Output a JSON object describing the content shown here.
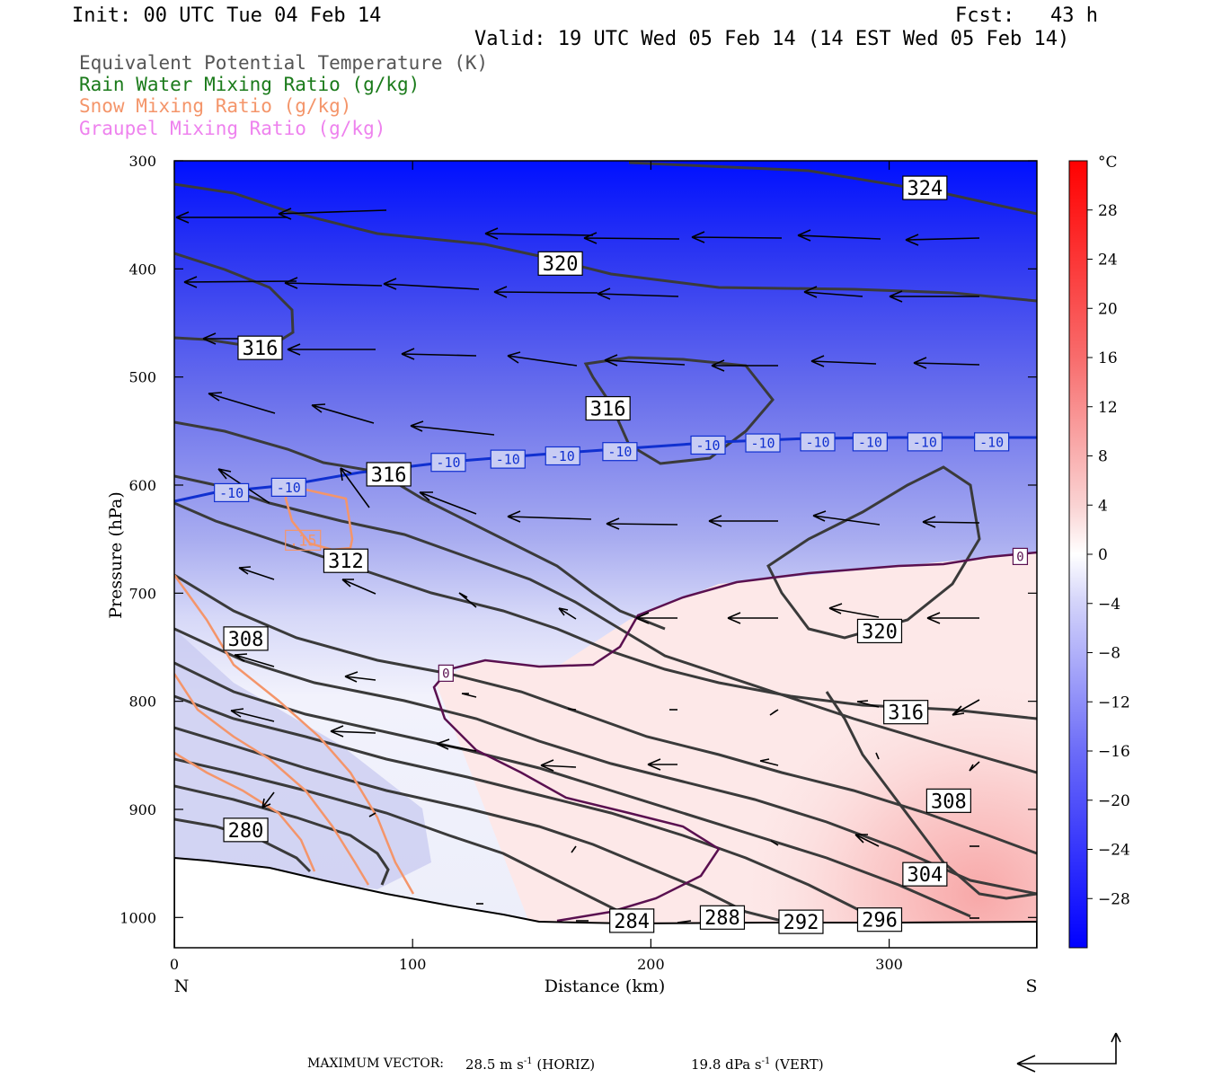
{
  "header": {
    "init": "Init: 00 UTC Tue 04 Feb 14",
    "fcst": "Fcst:   43 h",
    "valid": "Valid: 19 UTC Wed 05 Feb 14 (14 EST Wed 05 Feb 14)"
  },
  "legend": [
    {
      "label": "Equivalent Potential Temperature (K)",
      "color": "#555555"
    },
    {
      "label": "Rain Water Mixing Ratio (g/kg)",
      "color": "#1a7a1a"
    },
    {
      "label": "Snow Mixing Ratio (g/kg)",
      "color": "#f4956a"
    },
    {
      "label": "Graupel Mixing Ratio (g/kg)",
      "color": "#ee82ee"
    }
  ],
  "footer": {
    "label": "MAXIMUM VECTOR:",
    "horiz_value": "28.5 m s",
    "horiz_sup": "-1",
    "horiz_tag": "(HORIZ)",
    "vert_value": "19.8 dPa s",
    "vert_sup": "-1",
    "vert_tag": "(VERT)"
  },
  "chart_data": {
    "type": "cross-section",
    "xlabel": "Distance (km)",
    "ylabel": "Pressure (hPa)",
    "xlim": [
      0,
      362
    ],
    "ylim": [
      1028,
      300
    ],
    "x_ticks": [
      0,
      100,
      200,
      300
    ],
    "y_ticks": [
      300,
      400,
      500,
      600,
      700,
      800,
      900,
      1000
    ],
    "left_end_label": "N",
    "right_end_label": "S",
    "colorbar": {
      "unit": "°C",
      "ticks": [
        28,
        24,
        20,
        16,
        12,
        8,
        4,
        0,
        -4,
        -8,
        -12,
        -16,
        -20,
        -24,
        -28
      ],
      "range": [
        -32,
        32
      ],
      "cold_color": "#0000ff",
      "warm_color": "#ff0000"
    },
    "theta_e_labels": [
      {
        "text": "324",
        "x": 315,
        "p": 325
      },
      {
        "text": "320",
        "x": 162,
        "p": 395
      },
      {
        "text": "316",
        "x": 36,
        "p": 473
      },
      {
        "text": "316",
        "x": 182,
        "p": 529
      },
      {
        "text": "316",
        "x": 90,
        "p": 590
      },
      {
        "text": "312",
        "x": 72,
        "p": 670
      },
      {
        "text": "308",
        "x": 30,
        "p": 742
      },
      {
        "text": "280",
        "x": 30,
        "p": 919
      },
      {
        "text": "320",
        "x": 296,
        "p": 735
      },
      {
        "text": "316",
        "x": 307,
        "p": 810
      },
      {
        "text": "308",
        "x": 325,
        "p": 892
      },
      {
        "text": "304",
        "x": 315,
        "p": 960
      },
      {
        "text": "284",
        "x": 192,
        "p": 1003
      },
      {
        "text": "288",
        "x": 230,
        "p": 1000
      },
      {
        "text": "292",
        "x": 263,
        "p": 1004
      },
      {
        "text": "296",
        "x": 296,
        "p": 1002
      }
    ],
    "isotherm_labels": [
      {
        "text": "-10",
        "x": 24,
        "p": 607
      },
      {
        "text": "-10",
        "x": 48,
        "p": 602
      },
      {
        "text": "-10",
        "x": 115,
        "p": 579
      },
      {
        "text": "-10",
        "x": 140,
        "p": 576
      },
      {
        "text": "-10",
        "x": 163,
        "p": 573
      },
      {
        "text": "-10",
        "x": 187,
        "p": 569
      },
      {
        "text": "-10",
        "x": 224,
        "p": 563
      },
      {
        "text": "-10",
        "x": 247,
        "p": 561
      },
      {
        "text": "-10",
        "x": 270,
        "p": 560
      },
      {
        "text": "-10",
        "x": 292,
        "p": 560
      },
      {
        "text": "-10",
        "x": 315,
        "p": 560
      },
      {
        "text": "-10",
        "x": 343,
        "p": 560
      }
    ],
    "freezing_labels": [
      {
        "text": "0",
        "x": 355,
        "p": 666
      },
      {
        "text": "0",
        "x": 114,
        "p": 774
      }
    ],
    "snow_labels": [
      {
        "text": ".15",
        "x": 54,
        "p": 651
      }
    ]
  }
}
